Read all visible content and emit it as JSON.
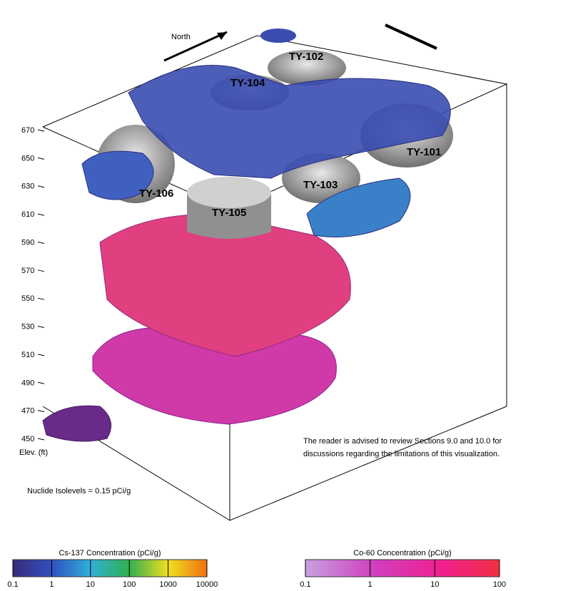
{
  "north_label": "North",
  "tanks": [
    {
      "label": "TY-101"
    },
    {
      "label": "TY-102"
    },
    {
      "label": "TY-103"
    },
    {
      "label": "TY-104"
    },
    {
      "label": "TY-105"
    },
    {
      "label": "TY-106"
    }
  ],
  "elevation_axis": {
    "title": "Elev. (ft)",
    "labels": [
      "670",
      "650",
      "630",
      "610",
      "590",
      "570",
      "550",
      "530",
      "510",
      "490",
      "470",
      "450"
    ]
  },
  "isolevel_note": "Nuclide Isolevels = 0.15 pCi/g",
  "advisory": [
    "The reader is advised to review Sections 9.0 and 10.0 for",
    "discussions regarding the limitations of this visualization."
  ],
  "colorbars": [
    {
      "title": "Cs-137 Concentration (pCi/g)",
      "ticks": [
        "0.1",
        "1",
        "10",
        "100",
        "1000",
        "10000"
      ]
    },
    {
      "title": "Co-60 Concentration (pCi/g)",
      "ticks": [
        "0.1",
        "1",
        "10",
        "100"
      ]
    }
  ]
}
